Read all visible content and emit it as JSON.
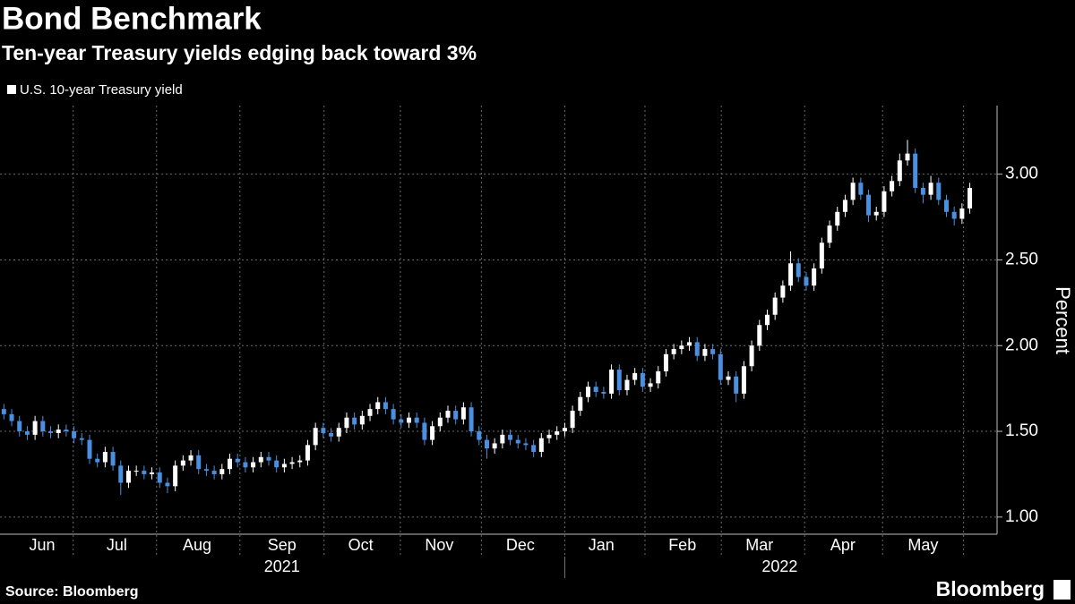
{
  "chart_data": {
    "type": "candlestick",
    "title": "Bond Benchmark",
    "subtitle": "Ten-year Treasury yields edging back toward 3%",
    "y_label": "Percent",
    "source": "Source: Bloomberg",
    "brand": "Bloomberg",
    "xlim": [
      0,
      128
    ],
    "ylim": [
      0.9,
      3.4
    ],
    "yticks": [
      {
        "value": 1,
        "label": "1.00"
      },
      {
        "value": 1.5,
        "label": "1.50"
      },
      {
        "value": 2,
        "label": "2.00"
      },
      {
        "value": 2.5,
        "label": "2.50"
      },
      {
        "value": 3,
        "label": "3.00"
      }
    ],
    "grid": true,
    "xticks": [
      {
        "value": 5.4,
        "label": "Jun"
      },
      {
        "value": 15.0,
        "label": "Jul"
      },
      {
        "value": 25.3,
        "label": "Aug"
      },
      {
        "value": 36.2,
        "label": "Sep"
      },
      {
        "value": 46.3,
        "label": "Oct"
      },
      {
        "value": 56.4,
        "label": "Nov"
      },
      {
        "value": 66.8,
        "label": "Dec"
      },
      {
        "value": 77.2,
        "label": "Jan"
      },
      {
        "value": 87.6,
        "label": "Feb"
      },
      {
        "value": 97.5,
        "label": "Mar"
      },
      {
        "value": 108.2,
        "label": "Apr"
      },
      {
        "value": 118.5,
        "label": "May"
      }
    ],
    "month_starts": [
      9.4,
      20.1,
      30.8,
      41.6,
      51.4,
      61.8,
      72.5,
      82.8,
      92.6,
      103.3,
      113.3,
      123.7
    ],
    "years": [
      {
        "value": 36.2,
        "label": "2021"
      },
      {
        "value": 100.1,
        "label": "2022"
      }
    ],
    "series": [
      {
        "name": "U.S. 10-year Treasury yield",
        "color": "#ffffff",
        "down_color": "#4a8fe0",
        "open": [
          1.63,
          1.6,
          1.56,
          1.5,
          1.48,
          1.56,
          1.5,
          1.49,
          1.51,
          1.5,
          1.46,
          1.45,
          1.34,
          1.32,
          1.38,
          1.3,
          1.2,
          1.27,
          1.27,
          1.25,
          1.26,
          1.2,
          1.18,
          1.3,
          1.33,
          1.36,
          1.28,
          1.27,
          1.25,
          1.28,
          1.34,
          1.32,
          1.29,
          1.32,
          1.35,
          1.33,
          1.29,
          1.31,
          1.32,
          1.33,
          1.42,
          1.52,
          1.49,
          1.47,
          1.52,
          1.58,
          1.54,
          1.59,
          1.63,
          1.67,
          1.63,
          1.57,
          1.55,
          1.58,
          1.55,
          1.45,
          1.53,
          1.58,
          1.62,
          1.57,
          1.64,
          1.5,
          1.45,
          1.4,
          1.43,
          1.48,
          1.45,
          1.43,
          1.42,
          1.38,
          1.46,
          1.48,
          1.5,
          1.52,
          1.62,
          1.7,
          1.76,
          1.73,
          1.72,
          1.86,
          1.74,
          1.8,
          1.84,
          1.76,
          1.78,
          1.85,
          1.95,
          1.98,
          2.0,
          2.02,
          1.94,
          1.98,
          1.95,
          1.8,
          1.82,
          1.72,
          1.88,
          2.0,
          2.12,
          2.18,
          2.28,
          2.35,
          2.48,
          2.4,
          2.35,
          2.45,
          2.6,
          2.7,
          2.78,
          2.85,
          2.95,
          2.88,
          2.76,
          2.78,
          2.9,
          2.96,
          3.08,
          3.12,
          2.92,
          2.88,
          2.95,
          2.85,
          2.78,
          2.74,
          2.8
        ],
        "high": [
          1.66,
          1.63,
          1.59,
          1.53,
          1.59,
          1.59,
          1.53,
          1.54,
          1.54,
          1.53,
          1.49,
          1.48,
          1.37,
          1.41,
          1.41,
          1.33,
          1.3,
          1.3,
          1.3,
          1.29,
          1.29,
          1.23,
          1.33,
          1.36,
          1.39,
          1.39,
          1.31,
          1.3,
          1.31,
          1.37,
          1.37,
          1.35,
          1.35,
          1.38,
          1.38,
          1.36,
          1.34,
          1.35,
          1.36,
          1.45,
          1.55,
          1.55,
          1.52,
          1.55,
          1.61,
          1.61,
          1.62,
          1.66,
          1.7,
          1.7,
          1.66,
          1.6,
          1.61,
          1.61,
          1.58,
          1.56,
          1.61,
          1.65,
          1.65,
          1.67,
          1.67,
          1.53,
          1.48,
          1.46,
          1.51,
          1.51,
          1.48,
          1.46,
          1.45,
          1.49,
          1.51,
          1.53,
          1.55,
          1.65,
          1.73,
          1.79,
          1.79,
          1.76,
          1.89,
          1.89,
          1.83,
          1.87,
          1.87,
          1.81,
          1.88,
          1.98,
          2.01,
          2.03,
          2.05,
          2.05,
          2.01,
          2.01,
          1.98,
          1.85,
          1.85,
          1.91,
          2.03,
          2.15,
          2.21,
          2.31,
          2.38,
          2.55,
          2.51,
          2.43,
          2.48,
          2.63,
          2.73,
          2.81,
          2.88,
          2.98,
          2.98,
          2.91,
          2.81,
          2.93,
          2.99,
          3.12,
          3.2,
          3.15,
          2.95,
          2.99,
          2.98,
          2.88,
          2.81,
          2.83,
          2.95
        ],
        "low": [
          1.57,
          1.53,
          1.47,
          1.45,
          1.45,
          1.47,
          1.46,
          1.46,
          1.47,
          1.43,
          1.42,
          1.31,
          1.29,
          1.29,
          1.27,
          1.13,
          1.17,
          1.24,
          1.22,
          1.22,
          1.17,
          1.14,
          1.15,
          1.27,
          1.3,
          1.25,
          1.24,
          1.22,
          1.22,
          1.25,
          1.29,
          1.26,
          1.26,
          1.29,
          1.3,
          1.26,
          1.26,
          1.28,
          1.29,
          1.3,
          1.39,
          1.46,
          1.44,
          1.44,
          1.49,
          1.51,
          1.51,
          1.56,
          1.6,
          1.6,
          1.54,
          1.52,
          1.52,
          1.52,
          1.42,
          1.42,
          1.5,
          1.55,
          1.54,
          1.54,
          1.47,
          1.42,
          1.34,
          1.37,
          1.4,
          1.42,
          1.4,
          1.39,
          1.35,
          1.35,
          1.43,
          1.45,
          1.47,
          1.49,
          1.59,
          1.67,
          1.7,
          1.69,
          1.69,
          1.71,
          1.71,
          1.77,
          1.73,
          1.73,
          1.75,
          1.82,
          1.92,
          1.95,
          1.97,
          1.91,
          1.91,
          1.92,
          1.77,
          1.77,
          1.67,
          1.69,
          1.85,
          1.97,
          2.09,
          2.15,
          2.25,
          2.32,
          2.37,
          2.32,
          2.32,
          2.42,
          2.57,
          2.67,
          2.75,
          2.82,
          2.85,
          2.72,
          2.73,
          2.75,
          2.87,
          2.93,
          3.05,
          2.89,
          2.83,
          2.85,
          2.82,
          2.75,
          2.7,
          2.71,
          2.77
        ],
        "close": [
          1.6,
          1.56,
          1.5,
          1.48,
          1.56,
          1.5,
          1.49,
          1.51,
          1.5,
          1.46,
          1.45,
          1.34,
          1.32,
          1.38,
          1.3,
          1.2,
          1.27,
          1.27,
          1.25,
          1.26,
          1.2,
          1.18,
          1.3,
          1.33,
          1.36,
          1.28,
          1.27,
          1.25,
          1.28,
          1.34,
          1.32,
          1.29,
          1.32,
          1.35,
          1.33,
          1.29,
          1.31,
          1.32,
          1.33,
          1.42,
          1.52,
          1.49,
          1.47,
          1.52,
          1.58,
          1.54,
          1.59,
          1.63,
          1.67,
          1.63,
          1.57,
          1.55,
          1.58,
          1.55,
          1.45,
          1.53,
          1.58,
          1.62,
          1.57,
          1.64,
          1.5,
          1.45,
          1.4,
          1.43,
          1.48,
          1.45,
          1.43,
          1.42,
          1.38,
          1.46,
          1.48,
          1.5,
          1.52,
          1.62,
          1.7,
          1.76,
          1.73,
          1.72,
          1.86,
          1.74,
          1.8,
          1.84,
          1.76,
          1.78,
          1.85,
          1.95,
          1.98,
          2.0,
          2.02,
          1.94,
          1.98,
          1.95,
          1.8,
          1.82,
          1.72,
          1.88,
          2.0,
          2.12,
          2.18,
          2.28,
          2.35,
          2.48,
          2.4,
          2.35,
          2.45,
          2.6,
          2.7,
          2.78,
          2.85,
          2.95,
          2.88,
          2.76,
          2.78,
          2.9,
          2.96,
          3.08,
          3.12,
          2.92,
          2.88,
          2.95,
          2.85,
          2.78,
          2.74,
          2.8,
          2.92
        ]
      }
    ]
  }
}
